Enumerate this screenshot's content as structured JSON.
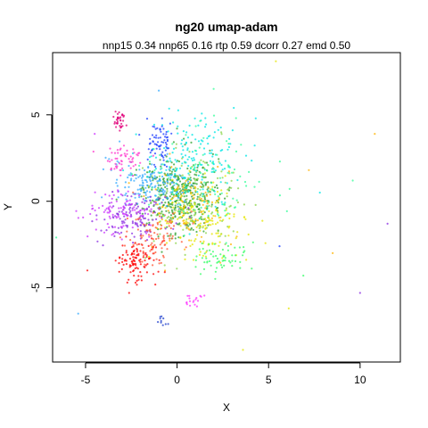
{
  "chart_data": {
    "type": "scatter",
    "title": "ng20 umap-adam",
    "subtitle": "nnp15 0.34 nnp65 0.16 rtp 0.59 dcorr 0.27 emd 0.50",
    "xlabel": "X",
    "ylabel": "Y",
    "xlim": [
      -6.8,
      12.2
    ],
    "ylim": [
      -9.3,
      8.6
    ],
    "xticks": [
      -5,
      0,
      5,
      10
    ],
    "yticks": [
      -5,
      0,
      5
    ],
    "xtick_labels": [
      "-5",
      "0",
      "5",
      "10"
    ],
    "ytick_labels": [
      "-5",
      "0",
      "5"
    ],
    "grid": false,
    "legend": "none",
    "clusters": [
      {
        "color": "#2ca02c",
        "cx": 0.2,
        "cy": 0.4,
        "sx": 1.0,
        "sy": 1.0,
        "n": 380
      },
      {
        "color": "#8bd44a",
        "cx": 0.8,
        "cy": 0.0,
        "sx": 1.4,
        "sy": 1.3,
        "n": 160
      },
      {
        "color": "#e5e600",
        "cx": 1.2,
        "cy": -1.2,
        "sx": 1.3,
        "sy": 1.1,
        "n": 160
      },
      {
        "color": "#ffb300",
        "cx": 0.7,
        "cy": -0.3,
        "sx": 1.2,
        "sy": 1.1,
        "n": 90
      },
      {
        "color": "#00e5e5",
        "cx": 0.9,
        "cy": 2.3,
        "sx": 1.4,
        "sy": 1.3,
        "n": 170
      },
      {
        "color": "#33aaff",
        "cx": -1.6,
        "cy": 1.0,
        "sx": 1.0,
        "sy": 0.7,
        "n": 150
      },
      {
        "color": "#1f3fff",
        "cx": -0.9,
        "cy": 3.3,
        "sx": 0.35,
        "sy": 0.6,
        "n": 70
      },
      {
        "color": "#8a2be2",
        "cx": -2.3,
        "cy": -0.9,
        "sx": 0.9,
        "sy": 0.7,
        "n": 130
      },
      {
        "color": "#cc33ff",
        "cx": -3.2,
        "cy": -0.6,
        "sx": 0.9,
        "sy": 0.6,
        "n": 90
      },
      {
        "color": "#ff33cc",
        "cx": -3.0,
        "cy": 2.4,
        "sx": 0.5,
        "sy": 0.4,
        "n": 55
      },
      {
        "color": "#e0007a",
        "cx": -3.1,
        "cy": 4.6,
        "sx": 0.2,
        "sy": 0.3,
        "n": 35
      },
      {
        "color": "#ff0000",
        "cx": -2.3,
        "cy": -3.5,
        "sx": 0.6,
        "sy": 0.6,
        "n": 110
      },
      {
        "color": "#ff5533",
        "cx": -1.2,
        "cy": -2.0,
        "sx": 0.9,
        "sy": 0.8,
        "n": 90
      },
      {
        "color": "#33ff66",
        "cx": 2.4,
        "cy": -3.3,
        "sx": 0.7,
        "sy": 0.45,
        "n": 60
      },
      {
        "color": "#33ff99",
        "cx": 1.6,
        "cy": 1.3,
        "sx": 1.6,
        "sy": 1.4,
        "n": 90
      },
      {
        "color": "#ff33ff",
        "cx": 0.9,
        "cy": -5.7,
        "sx": 0.25,
        "sy": 0.2,
        "n": 18
      },
      {
        "color": "#2040cc",
        "cx": -0.8,
        "cy": -7.0,
        "sx": 0.15,
        "sy": 0.2,
        "n": 10
      }
    ],
    "outliers": [
      {
        "x": 2.0,
        "y": 6.5,
        "color": "#33ff99"
      },
      {
        "x": -1.0,
        "y": 6.4,
        "color": "#33aaff"
      },
      {
        "x": 5.4,
        "y": 8.1,
        "color": "#e5e600"
      },
      {
        "x": 10.8,
        "y": 3.9,
        "color": "#ffb300"
      },
      {
        "x": 11.5,
        "y": -1.3,
        "color": "#8a2be2"
      },
      {
        "x": 10.0,
        "y": -5.3,
        "color": "#8a2be2"
      },
      {
        "x": 3.6,
        "y": -8.6,
        "color": "#e5e600"
      },
      {
        "x": -5.4,
        "y": -6.5,
        "color": "#33aaff"
      },
      {
        "x": -6.6,
        "y": -2.1,
        "color": "#33ff99"
      },
      {
        "x": 7.8,
        "y": 0.5,
        "color": "#00e5e5"
      },
      {
        "x": 8.5,
        "y": -3.0,
        "color": "#ffb300"
      },
      {
        "x": 6.1,
        "y": -6.2,
        "color": "#e5e600"
      },
      {
        "x": -4.5,
        "y": 3.9,
        "color": "#cc33ff"
      },
      {
        "x": 9.6,
        "y": 1.2,
        "color": "#33ff99"
      },
      {
        "x": 5.6,
        "y": -2.6,
        "color": "#1f3fff"
      },
      {
        "x": 7.2,
        "y": 1.8,
        "color": "#ffb300"
      },
      {
        "x": 4.3,
        "y": 4.8,
        "color": "#00e5e5"
      },
      {
        "x": -4.9,
        "y": -4.0,
        "color": "#ff0000"
      },
      {
        "x": 6.9,
        "y": -4.3,
        "color": "#33ff66"
      },
      {
        "x": 3.1,
        "y": 5.4,
        "color": "#00e5e5"
      }
    ]
  }
}
